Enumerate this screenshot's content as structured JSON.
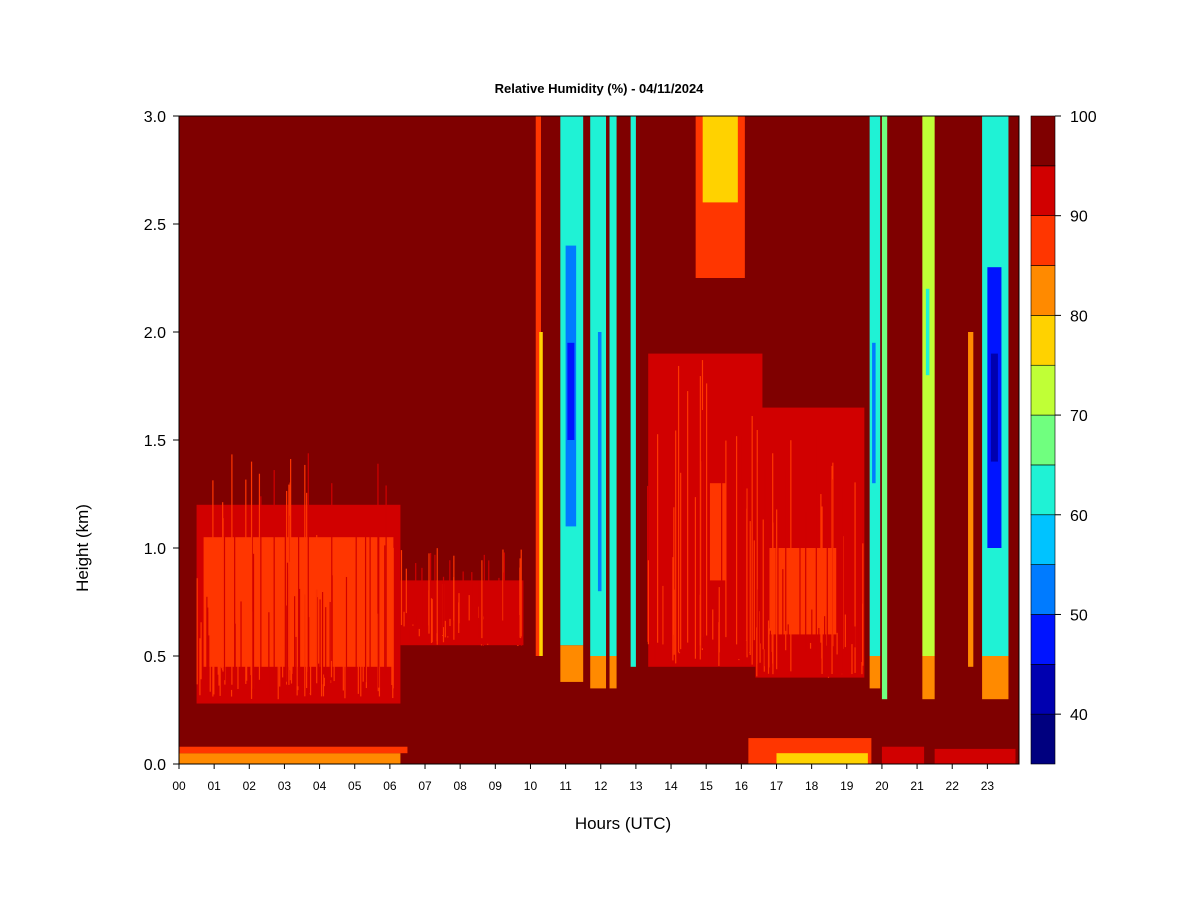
{
  "chart_data": {
    "type": "heatmap",
    "title": "Relative Humidity (%) - 04/11/2024",
    "xlabel": "Hours (UTC)",
    "ylabel": "Height (km)",
    "x_ticks": [
      "00",
      "01",
      "02",
      "03",
      "04",
      "05",
      "06",
      "07",
      "08",
      "09",
      "10",
      "11",
      "12",
      "13",
      "14",
      "15",
      "16",
      "17",
      "18",
      "19",
      "20",
      "21",
      "22",
      "23"
    ],
    "xlim": [
      0,
      23.9
    ],
    "y_ticks": [
      "0.0",
      "0.5",
      "1.0",
      "1.5",
      "2.0",
      "2.5",
      "3.0"
    ],
    "ylim": [
      0,
      3
    ],
    "colorbar": {
      "min": 35,
      "max": 100,
      "tick_labels": [
        "40",
        "50",
        "60",
        "70",
        "80",
        "90",
        "100"
      ],
      "tick_values": [
        40,
        50,
        60,
        70,
        80,
        90,
        100
      ],
      "levels": [
        {
          "from": 35,
          "to": 40,
          "color": "#00007f"
        },
        {
          "from": 40,
          "to": 45,
          "color": "#0000b0"
        },
        {
          "from": 45,
          "to": 50,
          "color": "#0014ff"
        },
        {
          "from": 50,
          "to": 55,
          "color": "#007bff"
        },
        {
          "from": 55,
          "to": 60,
          "color": "#00c3ff"
        },
        {
          "from": 60,
          "to": 65,
          "color": "#1ff2d5"
        },
        {
          "from": 65,
          "to": 70,
          "color": "#70ff7f"
        },
        {
          "from": 70,
          "to": 75,
          "color": "#c0ff36"
        },
        {
          "from": 75,
          "to": 80,
          "color": "#ffd200"
        },
        {
          "from": 80,
          "to": 85,
          "color": "#ff8a00"
        },
        {
          "from": 85,
          "to": 90,
          "color": "#ff3600"
        },
        {
          "from": 90,
          "to": 95,
          "color": "#d10000"
        },
        {
          "from": 95,
          "to": 100,
          "color": "#7f0000"
        }
      ]
    },
    "background_value": 98,
    "regions": [
      {
        "hours": [
          0.0,
          6.3
        ],
        "height": [
          0.0,
          0.05
        ],
        "rh": 80
      },
      {
        "hours": [
          0.0,
          6.5
        ],
        "height": [
          0.05,
          0.08
        ],
        "rh": 88
      },
      {
        "hours": [
          0.5,
          6.3
        ],
        "height": [
          0.28,
          1.2
        ],
        "rh": 91
      },
      {
        "hours": [
          0.7,
          6.1
        ],
        "height": [
          0.45,
          1.05
        ],
        "rh": 88
      },
      {
        "hours": [
          2.9,
          5.4
        ],
        "height": [
          0.55,
          0.9
        ],
        "rh": 86
      },
      {
        "hours": [
          6.3,
          9.8
        ],
        "height": [
          0.55,
          0.85
        ],
        "rh": 91
      },
      {
        "hours": [
          10.15,
          10.3
        ],
        "height": [
          0.5,
          3.0
        ],
        "rh": 85
      },
      {
        "hours": [
          10.25,
          10.35
        ],
        "height": [
          0.5,
          2.0
        ],
        "rh": 77
      },
      {
        "hours": [
          10.85,
          11.5
        ],
        "height": [
          0.38,
          0.55
        ],
        "rh": 80
      },
      {
        "hours": [
          10.85,
          11.5
        ],
        "height": [
          0.55,
          3.0
        ],
        "rh": 60
      },
      {
        "hours": [
          11.0,
          11.3
        ],
        "height": [
          1.1,
          2.4
        ],
        "rh": 52
      },
      {
        "hours": [
          11.05,
          11.25
        ],
        "height": [
          1.5,
          1.95
        ],
        "rh": 47
      },
      {
        "hours": [
          11.7,
          12.15
        ],
        "height": [
          0.35,
          0.5
        ],
        "rh": 82
      },
      {
        "hours": [
          11.7,
          12.15
        ],
        "height": [
          0.5,
          3.0
        ],
        "rh": 62
      },
      {
        "hours": [
          11.92,
          12.02
        ],
        "height": [
          0.8,
          2.0
        ],
        "rh": 52
      },
      {
        "hours": [
          12.25,
          12.45
        ],
        "height": [
          0.35,
          0.5
        ],
        "rh": 82
      },
      {
        "hours": [
          12.25,
          12.45
        ],
        "height": [
          0.5,
          3.0
        ],
        "rh": 62
      },
      {
        "hours": [
          12.85,
          13.0
        ],
        "height": [
          0.45,
          3.0
        ],
        "rh": 60
      },
      {
        "hours": [
          13.35,
          16.6
        ],
        "height": [
          0.45,
          1.9
        ],
        "rh": 92
      },
      {
        "hours": [
          15.1,
          15.55
        ],
        "height": [
          0.85,
          1.3
        ],
        "rh": 87
      },
      {
        "hours": [
          14.7,
          16.1
        ],
        "height": [
          2.25,
          3.0
        ],
        "rh": 86
      },
      {
        "hours": [
          14.9,
          15.9
        ],
        "height": [
          2.6,
          3.0
        ],
        "rh": 77
      },
      {
        "hours": [
          16.4,
          19.5
        ],
        "height": [
          0.4,
          1.65
        ],
        "rh": 91
      },
      {
        "hours": [
          16.8,
          18.7
        ],
        "height": [
          0.6,
          1.0
        ],
        "rh": 88
      },
      {
        "hours": [
          16.2,
          19.7
        ],
        "height": [
          0.0,
          0.12
        ],
        "rh": 87
      },
      {
        "hours": [
          17.0,
          19.6
        ],
        "height": [
          0.0,
          0.05
        ],
        "rh": 79
      },
      {
        "hours": [
          19.65,
          19.95
        ],
        "height": [
          0.35,
          0.5
        ],
        "rh": 80
      },
      {
        "hours": [
          19.65,
          19.95
        ],
        "height": [
          0.5,
          3.0
        ],
        "rh": 60
      },
      {
        "hours": [
          19.72,
          19.82
        ],
        "height": [
          1.3,
          1.95
        ],
        "rh": 50
      },
      {
        "hours": [
          20.0,
          20.15
        ],
        "height": [
          0.3,
          3.0
        ],
        "rh": 65
      },
      {
        "hours": [
          20.0,
          21.2
        ],
        "height": [
          0.0,
          0.08
        ],
        "rh": 90
      },
      {
        "hours": [
          21.15,
          21.5
        ],
        "height": [
          0.3,
          0.5
        ],
        "rh": 82
      },
      {
        "hours": [
          21.15,
          21.5
        ],
        "height": [
          0.5,
          3.0
        ],
        "rh": 72
      },
      {
        "hours": [
          21.25,
          21.35
        ],
        "height": [
          1.8,
          2.2
        ],
        "rh": 61
      },
      {
        "hours": [
          22.45,
          22.6
        ],
        "height": [
          0.45,
          2.0
        ],
        "rh": 83
      },
      {
        "hours": [
          22.85,
          23.6
        ],
        "height": [
          0.3,
          0.5
        ],
        "rh": 82
      },
      {
        "hours": [
          22.85,
          23.6
        ],
        "height": [
          0.5,
          3.0
        ],
        "rh": 60
      },
      {
        "hours": [
          23.0,
          23.4
        ],
        "height": [
          1.0,
          2.3
        ],
        "rh": 48
      },
      {
        "hours": [
          23.1,
          23.3
        ],
        "height": [
          1.4,
          1.9
        ],
        "rh": 43
      },
      {
        "hours": [
          21.5,
          23.8
        ],
        "height": [
          0.0,
          0.07
        ],
        "rh": 90
      }
    ]
  }
}
